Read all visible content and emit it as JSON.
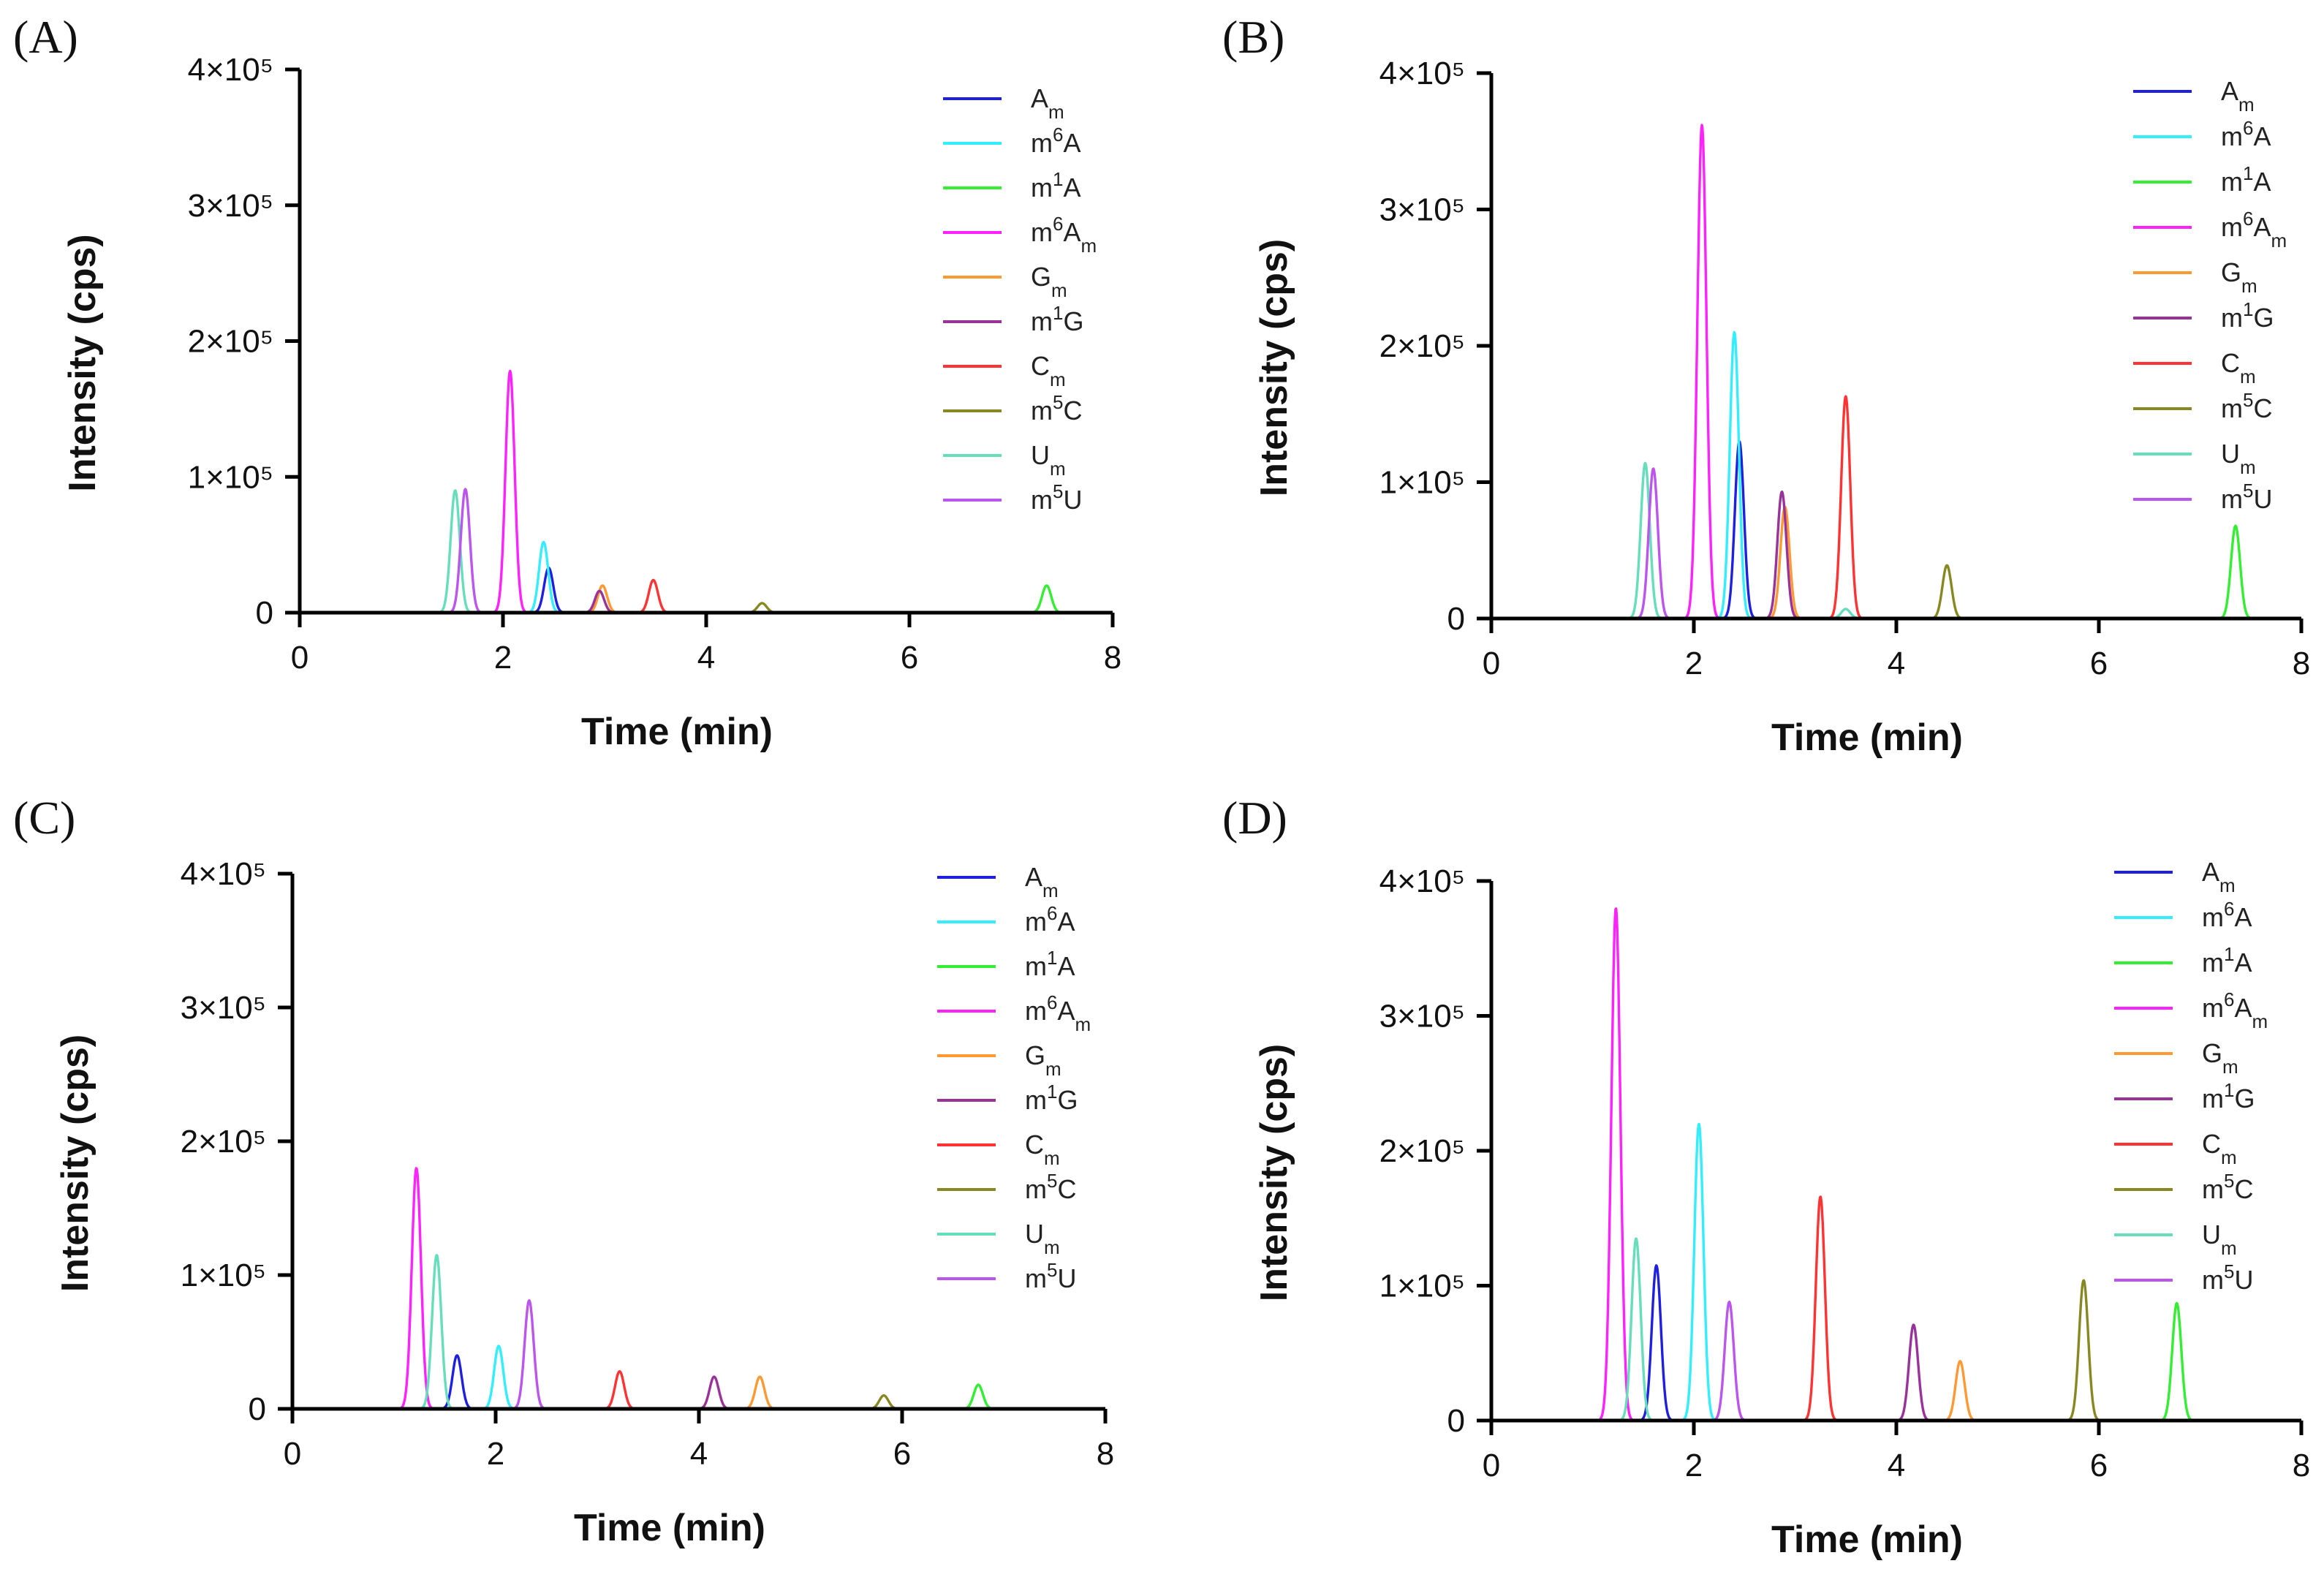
{
  "chart_data": [
    {
      "panel_label": "(A)",
      "type": "line",
      "xlabel": "Time (min)",
      "ylabel": "Intensity (cps)",
      "xlim": [
        0,
        8
      ],
      "ylim": [
        0,
        400000
      ],
      "x_ticks": [
        "0",
        "2",
        "4",
        "6",
        "8"
      ],
      "y_ticks": [
        "0",
        "1×10⁵",
        "2×10⁵",
        "3×10⁵",
        "4×10⁵"
      ],
      "legend_position": "top-right",
      "series": [
        {
          "name": "Am",
          "base": "A",
          "sup": "",
          "sub": "m",
          "color": "#1f1fe0",
          "peaks": [
            [
              2.45,
              33000
            ]
          ]
        },
        {
          "name": "m6A",
          "base": "m",
          "sup": "6",
          "sub": "",
          "rest": "A",
          "color": "#33eeff",
          "peaks": [
            [
              2.4,
              52000
            ]
          ]
        },
        {
          "name": "m1A",
          "base": "m",
          "sup": "1",
          "sub": "",
          "rest": "A",
          "color": "#33ee33",
          "peaks": [
            [
              7.35,
              20000
            ]
          ]
        },
        {
          "name": "m6Am",
          "base": "m",
          "sup": "6",
          "sub": "m",
          "rest": "A",
          "color": "#ff22ff",
          "peaks": [
            [
              2.07,
              178000
            ]
          ]
        },
        {
          "name": "Gm",
          "base": "G",
          "sup": "",
          "sub": "m",
          "color": "#ff9933",
          "peaks": [
            [
              2.98,
              20000
            ]
          ]
        },
        {
          "name": "m1G",
          "base": "m",
          "sup": "1",
          "sub": "",
          "rest": "G",
          "color": "#993399",
          "peaks": [
            [
              2.95,
              16000
            ]
          ]
        },
        {
          "name": "Cm",
          "base": "C",
          "sup": "",
          "sub": "m",
          "color": "#ff3333",
          "peaks": [
            [
              3.48,
              24000
            ]
          ]
        },
        {
          "name": "m5C",
          "base": "m",
          "sup": "5",
          "sub": "",
          "rest": "C",
          "color": "#888822",
          "peaks": [
            [
              4.55,
              7000
            ]
          ]
        },
        {
          "name": "Um",
          "base": "U",
          "sup": "",
          "sub": "m",
          "color": "#66ddbb",
          "peaks": [
            [
              1.53,
              90000
            ]
          ]
        },
        {
          "name": "m5U",
          "base": "m",
          "sup": "5",
          "sub": "",
          "rest": "U",
          "color": "#bb55ee",
          "peaks": [
            [
              1.63,
              91000
            ]
          ]
        }
      ]
    },
    {
      "panel_label": "(B)",
      "type": "line",
      "xlabel": "Time (min)",
      "ylabel": "Intensity (cps)",
      "xlim": [
        0,
        8
      ],
      "ylim": [
        0,
        400000
      ],
      "x_ticks": [
        "0",
        "2",
        "4",
        "6",
        "8"
      ],
      "y_ticks": [
        "0",
        "1×10⁵",
        "2×10⁵",
        "3×10⁵",
        "4×10⁵"
      ],
      "legend_position": "top-right",
      "series": [
        {
          "name": "Am",
          "base": "A",
          "sup": "",
          "sub": "m",
          "color": "#1f1fe0",
          "peaks": [
            [
              2.45,
              130000
            ]
          ]
        },
        {
          "name": "m6A",
          "base": "m",
          "sup": "6",
          "sub": "",
          "rest": "A",
          "color": "#33eeff",
          "peaks": [
            [
              2.4,
              210000
            ]
          ]
        },
        {
          "name": "m1A",
          "base": "m",
          "sup": "1",
          "sub": "",
          "rest": "A",
          "color": "#33ee33",
          "peaks": [
            [
              7.35,
              68000
            ]
          ]
        },
        {
          "name": "m6Am",
          "base": "m",
          "sup": "6",
          "sub": "m",
          "rest": "A",
          "color": "#ff22ff",
          "peaks": [
            [
              2.08,
              362000
            ]
          ]
        },
        {
          "name": "Gm",
          "base": "G",
          "sup": "",
          "sub": "m",
          "color": "#ff9933",
          "peaks": [
            [
              2.9,
              82000
            ]
          ]
        },
        {
          "name": "m1G",
          "base": "m",
          "sup": "1",
          "sub": "",
          "rest": "G",
          "color": "#993399",
          "peaks": [
            [
              2.87,
              93000
            ]
          ]
        },
        {
          "name": "Cm",
          "base": "C",
          "sup": "",
          "sub": "m",
          "color": "#ff3333",
          "peaks": [
            [
              3.5,
              163000
            ]
          ]
        },
        {
          "name": "m5C",
          "base": "m",
          "sup": "5",
          "sub": "",
          "rest": "C",
          "color": "#888822",
          "peaks": [
            [
              4.5,
              39000
            ]
          ]
        },
        {
          "name": "Um",
          "base": "U",
          "sup": "",
          "sub": "m",
          "color": "#66ddbb",
          "peaks": [
            [
              1.52,
              114000
            ],
            [
              3.5,
              7000
            ]
          ]
        },
        {
          "name": "m5U",
          "base": "m",
          "sup": "5",
          "sub": "",
          "rest": "U",
          "color": "#bb55ee",
          "peaks": [
            [
              1.6,
              110000
            ]
          ]
        }
      ]
    },
    {
      "panel_label": "(C)",
      "type": "line",
      "xlabel": "Time (min)",
      "ylabel": "Intensity (cps)",
      "xlim": [
        0,
        8
      ],
      "ylim": [
        0,
        400000
      ],
      "x_ticks": [
        "0",
        "2",
        "4",
        "6",
        "8"
      ],
      "y_ticks": [
        "0",
        "1×10⁵",
        "2×10⁵",
        "3×10⁵",
        "4×10⁵"
      ],
      "legend_position": "top-right",
      "series": [
        {
          "name": "Am",
          "base": "A",
          "sup": "",
          "sub": "m",
          "color": "#1f1fe0",
          "peaks": [
            [
              1.62,
              40000
            ]
          ]
        },
        {
          "name": "m6A",
          "base": "m",
          "sup": "6",
          "sub": "",
          "rest": "A",
          "color": "#33eeff",
          "peaks": [
            [
              2.03,
              47000
            ]
          ]
        },
        {
          "name": "m1A",
          "base": "m",
          "sup": "1",
          "sub": "",
          "rest": "A",
          "color": "#33ee33",
          "peaks": [
            [
              6.75,
              18000
            ]
          ]
        },
        {
          "name": "m6Am",
          "base": "m",
          "sup": "6",
          "sub": "m",
          "rest": "A",
          "color": "#ff22ff",
          "peaks": [
            [
              1.22,
              180000
            ]
          ]
        },
        {
          "name": "Gm",
          "base": "G",
          "sup": "",
          "sub": "m",
          "color": "#ff9933",
          "peaks": [
            [
              4.6,
              24000
            ]
          ]
        },
        {
          "name": "m1G",
          "base": "m",
          "sup": "1",
          "sub": "",
          "rest": "G",
          "color": "#993399",
          "peaks": [
            [
              4.15,
              24000
            ]
          ]
        },
        {
          "name": "Cm",
          "base": "C",
          "sup": "",
          "sub": "m",
          "color": "#ff3333",
          "peaks": [
            [
              3.22,
              28000
            ]
          ]
        },
        {
          "name": "m5C",
          "base": "m",
          "sup": "5",
          "sub": "",
          "rest": "C",
          "color": "#888822",
          "peaks": [
            [
              5.82,
              10000
            ]
          ]
        },
        {
          "name": "Um",
          "base": "U",
          "sup": "",
          "sub": "m",
          "color": "#66ddbb",
          "peaks": [
            [
              1.42,
              115000
            ]
          ]
        },
        {
          "name": "m5U",
          "base": "m",
          "sup": "5",
          "sub": "",
          "rest": "U",
          "color": "#bb55ee",
          "peaks": [
            [
              2.33,
              81000
            ]
          ]
        }
      ]
    },
    {
      "panel_label": "(D)",
      "type": "line",
      "xlabel": "Time (min)",
      "ylabel": "Intensity (cps)",
      "xlim": [
        0,
        8
      ],
      "ylim": [
        0,
        400000
      ],
      "x_ticks": [
        "0",
        "2",
        "4",
        "6",
        "8"
      ],
      "y_ticks": [
        "0",
        "1×10⁵",
        "2×10⁵",
        "3×10⁵",
        "4×10⁵"
      ],
      "legend_position": "top-right",
      "series": [
        {
          "name": "Am",
          "base": "A",
          "sup": "",
          "sub": "m",
          "color": "#1f1fe0",
          "peaks": [
            [
              1.63,
              115000
            ]
          ]
        },
        {
          "name": "m6A",
          "base": "m",
          "sup": "6",
          "sub": "",
          "rest": "A",
          "color": "#33eeff",
          "peaks": [
            [
              2.05,
              220000
            ]
          ]
        },
        {
          "name": "m1A",
          "base": "m",
          "sup": "1",
          "sub": "",
          "rest": "A",
          "color": "#33ee33",
          "peaks": [
            [
              6.77,
              87000
            ]
          ]
        },
        {
          "name": "m6Am",
          "base": "m",
          "sup": "6",
          "sub": "m",
          "rest": "A",
          "color": "#ff22ff",
          "peaks": [
            [
              1.23,
              380000
            ]
          ]
        },
        {
          "name": "Gm",
          "base": "G",
          "sup": "",
          "sub": "m",
          "color": "#ff9933",
          "peaks": [
            [
              4.63,
              44000
            ]
          ]
        },
        {
          "name": "m1G",
          "base": "m",
          "sup": "1",
          "sub": "",
          "rest": "G",
          "color": "#993399",
          "peaks": [
            [
              4.17,
              71000
            ]
          ]
        },
        {
          "name": "Cm",
          "base": "C",
          "sup": "",
          "sub": "m",
          "color": "#ff3333",
          "peaks": [
            [
              3.25,
              166000
            ]
          ]
        },
        {
          "name": "m5C",
          "base": "m",
          "sup": "5",
          "sub": "",
          "rest": "C",
          "color": "#888822",
          "peaks": [
            [
              5.85,
              104000
            ]
          ]
        },
        {
          "name": "Um",
          "base": "U",
          "sup": "",
          "sub": "m",
          "color": "#66ddbb",
          "peaks": [
            [
              1.43,
              135000
            ]
          ]
        },
        {
          "name": "m5U",
          "base": "m",
          "sup": "5",
          "sub": "",
          "rest": "U",
          "color": "#bb55ee",
          "peaks": [
            [
              2.35,
              88000
            ]
          ]
        }
      ]
    }
  ]
}
